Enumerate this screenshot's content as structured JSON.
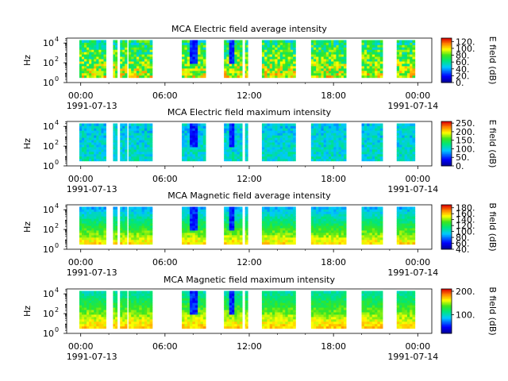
{
  "chart_data": [
    {
      "type": "heatmap",
      "title": "MCA  Electric field average intensity",
      "ylabel": "Hz",
      "colorbar_label": "E field (dB)",
      "colorbar_ticks": [
        "0.",
        "20.",
        "40.",
        "60.",
        "80.",
        "100.",
        "120."
      ],
      "colorbar_range": [
        0,
        130
      ],
      "variant": "e_avg"
    },
    {
      "type": "heatmap",
      "title": "MCA  Electric field maximum intensity",
      "ylabel": "Hz",
      "colorbar_label": "E field (dB)",
      "colorbar_ticks": [
        "0.",
        "50.",
        "100.",
        "150.",
        "200.",
        "250."
      ],
      "colorbar_range": [
        0,
        260
      ],
      "variant": "e_max"
    },
    {
      "type": "heatmap",
      "title": "MCA  Magnetic field average intensity",
      "ylabel": "Hz",
      "colorbar_label": "B field (dB)",
      "colorbar_ticks": [
        "40.",
        "60.",
        "80.",
        "100.",
        "120.",
        "140.",
        "160.",
        "180."
      ],
      "colorbar_range": [
        40,
        190
      ],
      "variant": "b_avg"
    },
    {
      "type": "heatmap",
      "title": "MCA  Magnetic field maximum intensity",
      "ylabel": "Hz",
      "colorbar_label": "B field (dB)",
      "colorbar_ticks": [
        "100.",
        "200."
      ],
      "colorbar_range": [
        20,
        210
      ],
      "variant": "b_max"
    }
  ],
  "shared": {
    "x_range": [
      "1991-07-13 00:00",
      "1991-07-14 00:00"
    ],
    "x_ticks": [
      "00:00",
      "06:00",
      "12:00",
      "18:00",
      "00:00"
    ],
    "x_date_labels": [
      "1991-07-13",
      "1991-07-14"
    ],
    "y_range_log10": [
      0,
      4.5
    ],
    "y_ticks": [
      {
        "base": "10",
        "exp": "0"
      },
      {
        "base": "10",
        "exp": "2"
      },
      {
        "base": "10",
        "exp": "4"
      }
    ],
    "data_segments_hours": [
      [
        -0.1,
        1.8
      ],
      [
        2.3,
        2.6
      ],
      [
        2.8,
        3.3
      ],
      [
        3.4,
        5.1
      ],
      [
        7.2,
        8.9
      ],
      [
        10.2,
        11.5
      ],
      [
        11.7,
        11.9
      ],
      [
        12.9,
        15.3
      ],
      [
        16.4,
        18.9
      ],
      [
        20.0,
        21.5
      ],
      [
        22.5,
        23.8
      ]
    ],
    "data_y_range_log10": [
      0.5,
      4.3
    ]
  }
}
